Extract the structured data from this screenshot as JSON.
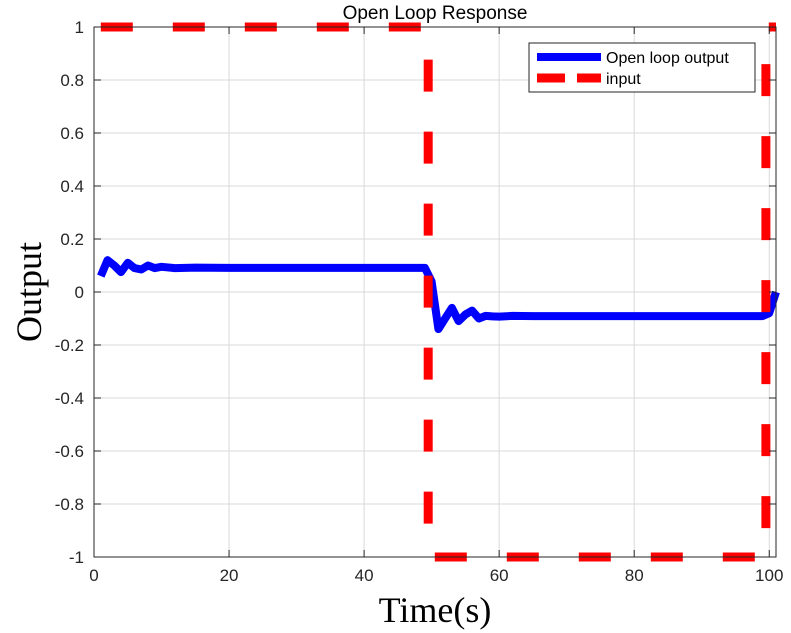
{
  "chart_data": {
    "type": "line",
    "title": "Open Loop Response",
    "xlabel": "Time(s)",
    "ylabel": "Output",
    "xlim": [
      0,
      101
    ],
    "ylim": [
      -1,
      1
    ],
    "x_ticks": [
      0,
      20,
      40,
      60,
      80,
      100
    ],
    "y_ticks": [
      1,
      0.8,
      0.6,
      0.4,
      0.2,
      0,
      -0.2,
      -0.4,
      -0.6,
      -0.8,
      -1
    ],
    "x_tick_labels": [
      "0",
      "20",
      "40",
      "60",
      "80",
      "100"
    ],
    "y_tick_labels": [
      "1",
      "0.8",
      "0.6",
      "0.4",
      "0.2",
      "0",
      "-0.2",
      "-0.4",
      "-0.6",
      "-0.8",
      "-1"
    ],
    "grid": true,
    "legend_position": "top-right",
    "series": [
      {
        "name": "Open loop output",
        "color": "#0000ff",
        "style": "solid",
        "x": [
          1,
          2,
          3,
          4,
          5,
          6,
          7,
          8,
          9,
          10,
          12,
          15,
          20,
          30,
          40,
          49,
          50,
          51,
          52,
          53,
          54,
          55,
          56,
          57,
          58,
          59,
          60,
          62,
          65,
          70,
          80,
          90,
          99,
          100,
          101
        ],
        "y": [
          0.06,
          0.12,
          0.1,
          0.075,
          0.11,
          0.09,
          0.085,
          0.1,
          0.09,
          0.095,
          0.09,
          0.092,
          0.091,
          0.091,
          0.091,
          0.091,
          0.04,
          -0.14,
          -0.1,
          -0.06,
          -0.11,
          -0.085,
          -0.07,
          -0.1,
          -0.09,
          -0.092,
          -0.093,
          -0.09,
          -0.091,
          -0.091,
          -0.091,
          -0.091,
          -0.091,
          -0.08,
          0.0
        ]
      },
      {
        "name": "input",
        "color": "#ff0000",
        "style": "dashed",
        "x": [
          1,
          49.5,
          49.5,
          99.5,
          99.5,
          101
        ],
        "y": [
          1,
          1,
          -1,
          -1,
          1,
          1
        ]
      }
    ]
  }
}
